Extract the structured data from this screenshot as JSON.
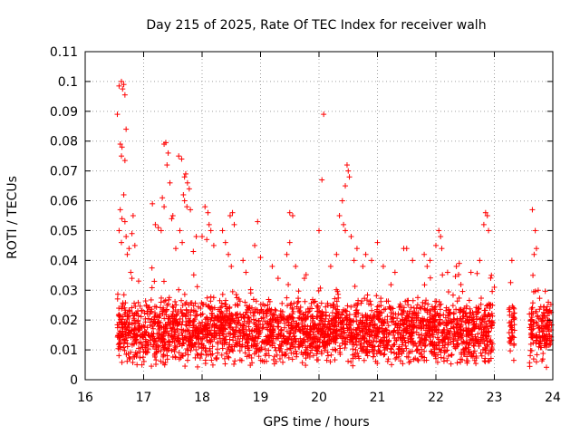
{
  "chart_data": {
    "type": "scatter",
    "title": "Day 215 of 2025, Rate Of TEC Index for receiver walh",
    "xlabel": "GPS time / hours",
    "ylabel": "ROTI / TECUs",
    "xlim": [
      16,
      24
    ],
    "ylim": [
      0,
      0.11
    ],
    "xticks": [
      16,
      17,
      18,
      19,
      20,
      21,
      22,
      23,
      24
    ],
    "xtick_labels": [
      "16",
      "17",
      "18",
      "19",
      "20",
      "21",
      "22",
      "23",
      "24"
    ],
    "yticks": [
      0,
      0.01,
      0.02,
      0.03,
      0.04,
      0.05,
      0.06,
      0.07,
      0.08,
      0.09,
      0.1,
      0.11
    ],
    "ytick_labels": [
      "0",
      "0.01",
      "0.02",
      "0.03",
      "0.04",
      "0.05",
      "0.06",
      "0.07",
      "0.08",
      "0.09",
      "0.1",
      "0.11"
    ],
    "grid": true,
    "marker": "+",
    "color": "#ff0000",
    "series": [
      {
        "name": "ROTI",
        "points": [
          [
            16.58,
            0.0985
          ],
          [
            16.62,
            0.1
          ],
          [
            16.64,
            0.0975
          ],
          [
            16.66,
            0.099
          ],
          [
            16.68,
            0.0955
          ],
          [
            16.55,
            0.089
          ],
          [
            16.6,
            0.079
          ],
          [
            16.63,
            0.078
          ],
          [
            16.62,
            0.075
          ],
          [
            16.68,
            0.0735
          ],
          [
            16.7,
            0.084
          ],
          [
            16.66,
            0.062
          ],
          [
            16.6,
            0.057
          ],
          [
            16.63,
            0.054
          ],
          [
            16.68,
            0.053
          ],
          [
            16.58,
            0.05
          ],
          [
            16.62,
            0.046
          ],
          [
            16.7,
            0.048
          ],
          [
            16.75,
            0.044
          ],
          [
            16.8,
            0.049
          ],
          [
            16.82,
            0.055
          ],
          [
            16.85,
            0.045
          ],
          [
            16.72,
            0.042
          ],
          [
            16.78,
            0.036
          ],
          [
            16.8,
            0.034
          ],
          [
            17.15,
            0.059
          ],
          [
            17.2,
            0.052
          ],
          [
            17.25,
            0.051
          ],
          [
            17.3,
            0.05
          ],
          [
            17.35,
            0.079
          ],
          [
            17.38,
            0.0795
          ],
          [
            17.42,
            0.076
          ],
          [
            17.4,
            0.072
          ],
          [
            17.45,
            0.066
          ],
          [
            17.5,
            0.055
          ],
          [
            17.48,
            0.054
          ],
          [
            17.35,
            0.058
          ],
          [
            17.32,
            0.061
          ],
          [
            17.55,
            0.044
          ],
          [
            17.6,
            0.075
          ],
          [
            17.65,
            0.074
          ],
          [
            17.7,
            0.068
          ],
          [
            17.72,
            0.069
          ],
          [
            17.75,
            0.066
          ],
          [
            17.78,
            0.064
          ],
          [
            17.68,
            0.062
          ],
          [
            17.7,
            0.06
          ],
          [
            17.74,
            0.058
          ],
          [
            17.8,
            0.057
          ],
          [
            17.62,
            0.05
          ],
          [
            17.66,
            0.046
          ],
          [
            17.85,
            0.043
          ],
          [
            17.9,
            0.048
          ],
          [
            18.05,
            0.058
          ],
          [
            18.1,
            0.056
          ],
          [
            18.12,
            0.052
          ],
          [
            18.15,
            0.05
          ],
          [
            18.0,
            0.048
          ],
          [
            18.08,
            0.047
          ],
          [
            18.2,
            0.045
          ],
          [
            18.35,
            0.05
          ],
          [
            18.4,
            0.046
          ],
          [
            18.45,
            0.042
          ],
          [
            18.5,
            0.038
          ],
          [
            18.48,
            0.055
          ],
          [
            18.52,
            0.056
          ],
          [
            18.55,
            0.052
          ],
          [
            18.7,
            0.04
          ],
          [
            18.75,
            0.036
          ],
          [
            18.9,
            0.045
          ],
          [
            18.95,
            0.053
          ],
          [
            19.0,
            0.041
          ],
          [
            19.2,
            0.038
          ],
          [
            19.3,
            0.034
          ],
          [
            19.45,
            0.042
          ],
          [
            19.5,
            0.046
          ],
          [
            19.55,
            0.055
          ],
          [
            19.5,
            0.056
          ],
          [
            19.6,
            0.038
          ],
          [
            19.75,
            0.034
          ],
          [
            20.0,
            0.05
          ],
          [
            20.05,
            0.067
          ],
          [
            20.08,
            0.089
          ],
          [
            20.2,
            0.038
          ],
          [
            20.3,
            0.042
          ],
          [
            20.35,
            0.055
          ],
          [
            20.4,
            0.06
          ],
          [
            20.45,
            0.065
          ],
          [
            20.48,
            0.072
          ],
          [
            20.5,
            0.07
          ],
          [
            20.52,
            0.068
          ],
          [
            20.42,
            0.052
          ],
          [
            20.45,
            0.05
          ],
          [
            20.55,
            0.048
          ],
          [
            20.6,
            0.04
          ],
          [
            20.65,
            0.044
          ],
          [
            20.75,
            0.038
          ],
          [
            20.8,
            0.042
          ],
          [
            20.9,
            0.04
          ],
          [
            21.0,
            0.046
          ],
          [
            21.1,
            0.038
          ],
          [
            21.3,
            0.036
          ],
          [
            21.45,
            0.044
          ],
          [
            21.5,
            0.044
          ],
          [
            21.6,
            0.04
          ],
          [
            21.8,
            0.042
          ],
          [
            21.85,
            0.038
          ],
          [
            21.9,
            0.04
          ],
          [
            22.05,
            0.05
          ],
          [
            22.08,
            0.048
          ],
          [
            22.1,
            0.044
          ],
          [
            22.0,
            0.045
          ],
          [
            22.2,
            0.036
          ],
          [
            22.35,
            0.038
          ],
          [
            22.4,
            0.039
          ],
          [
            22.6,
            0.036
          ],
          [
            22.75,
            0.04
          ],
          [
            22.85,
            0.056
          ],
          [
            22.88,
            0.055
          ],
          [
            22.9,
            0.05
          ],
          [
            22.82,
            0.052
          ],
          [
            22.95,
            0.035
          ],
          [
            23.0,
            0.031
          ],
          [
            23.3,
            0.04
          ],
          [
            23.65,
            0.057
          ],
          [
            23.7,
            0.05
          ],
          [
            23.72,
            0.044
          ],
          [
            23.68,
            0.042
          ],
          [
            23.66,
            0.035
          ],
          [
            23.75,
            0.03
          ]
        ]
      }
    ]
  }
}
